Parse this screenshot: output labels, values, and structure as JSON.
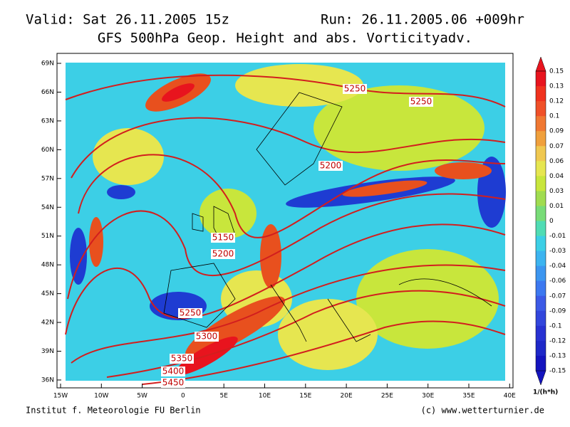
{
  "header": {
    "valid": "Valid: Sat 26.11.2005 15z",
    "run": "Run: 26.11.2005.06 +009hr",
    "title": "GFS 500hPa Geop. Height and abs. Vorticityadv."
  },
  "axes": {
    "lat_labels": [
      "69N",
      "66N",
      "63N",
      "60N",
      "57N",
      "54N",
      "51N",
      "48N",
      "45N",
      "42N",
      "39N",
      "36N"
    ],
    "lon_labels": [
      "15W",
      "10W",
      "5W",
      "0",
      "5E",
      "10E",
      "15E",
      "20E",
      "25E",
      "30E",
      "35E",
      "40E"
    ]
  },
  "contour_labels": [
    "5250",
    "5250",
    "5200",
    "5150",
    "5200",
    "5250",
    "5300",
    "5350",
    "5400",
    "5450"
  ],
  "colorbar": {
    "labels": [
      "0.15",
      "0.13",
      "0.12",
      "0.1",
      "0.09",
      "0.07",
      "0.06",
      "0.04",
      "0.03",
      "0.01",
      "0",
      "-0.01",
      "-0.03",
      "-0.04",
      "-0.06",
      "-0.07",
      "-0.09",
      "-0.1",
      "-0.12",
      "-0.13",
      "-0.15"
    ],
    "unit": "1/(h*h)"
  },
  "footer": {
    "left": "Institut f. Meteorologie  FU Berlin",
    "right": "(c) www.wetterturnier.de"
  }
}
